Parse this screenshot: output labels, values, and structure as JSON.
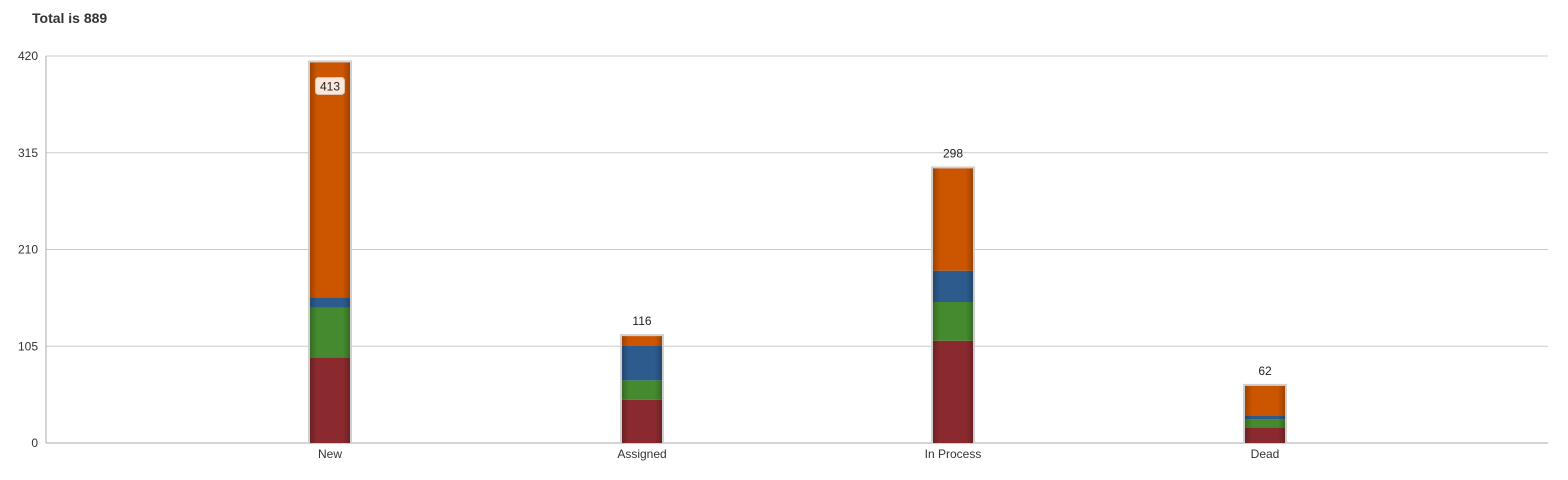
{
  "chart_data": {
    "type": "bar",
    "stacked": true,
    "title": "Total is 889",
    "xlabel": "",
    "ylabel": "",
    "ylim": [
      0,
      420
    ],
    "yticks": [
      "0",
      "105",
      "210",
      "315",
      "420"
    ],
    "grid": true,
    "categories": [
      "New",
      "Assigned",
      "In Process",
      "Dead"
    ],
    "totals": [
      413,
      116,
      298,
      62
    ],
    "total_labels": [
      "413",
      "116",
      "298",
      "62"
    ],
    "series": [
      {
        "values": [
          93,
          47,
          111,
          17
        ],
        "color": "#8b2a2e"
      },
      {
        "values": [
          54,
          21,
          42,
          9
        ],
        "color": "#458a2e"
      },
      {
        "values": [
          11,
          38,
          34,
          4
        ],
        "color": "#2d5b8e"
      },
      {
        "values": [
          255,
          10,
          111,
          32
        ],
        "color": "#cc5500"
      }
    ]
  }
}
